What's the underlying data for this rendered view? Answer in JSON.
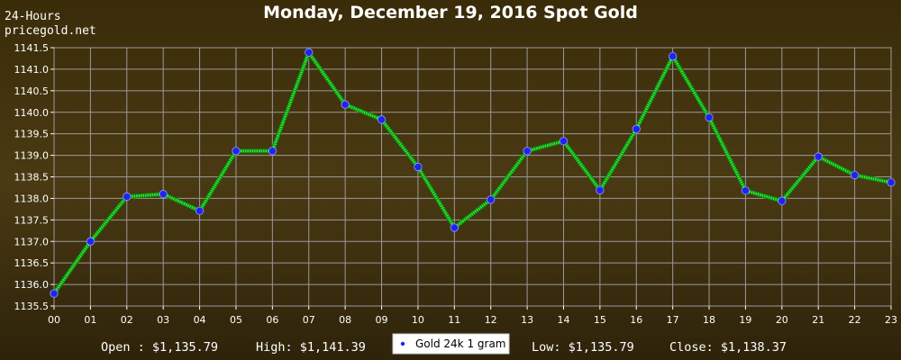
{
  "corner": {
    "line1": "24-Hours",
    "line2": "pricegold.net"
  },
  "chart_data": {
    "type": "line",
    "title": "Monday, December 19, 2016 Spot Gold",
    "categories": [
      "00",
      "01",
      "02",
      "03",
      "04",
      "05",
      "06",
      "07",
      "08",
      "09",
      "10",
      "11",
      "12",
      "13",
      "14",
      "15",
      "16",
      "17",
      "18",
      "19",
      "20",
      "21",
      "22",
      "23"
    ],
    "series": [
      {
        "name": "Gold 24k 1 gram",
        "values": [
          1135.79,
          1137.0,
          1138.04,
          1138.1,
          1137.71,
          1139.1,
          1139.1,
          1141.39,
          1140.18,
          1139.83,
          1138.73,
          1137.32,
          1137.97,
          1139.1,
          1139.33,
          1138.19,
          1139.61,
          1141.3,
          1139.88,
          1138.18,
          1137.94,
          1138.97,
          1138.54,
          1138.37
        ]
      }
    ],
    "ylim": [
      1135.5,
      1141.5
    ],
    "yticks": [
      "1135.5",
      "1136.0",
      "1136.5",
      "1137.0",
      "1137.5",
      "1138.0",
      "1138.5",
      "1139.0",
      "1139.5",
      "1140.0",
      "1140.5",
      "1141.0",
      "1141.5"
    ],
    "grid": true,
    "legend_position": "bottom-center"
  },
  "stats": {
    "open": "Open : $1,135.79",
    "high": "High: $1,141.39",
    "low": "Low: $1,135.79",
    "close": "Close: $1,138.37"
  },
  "colors": {
    "line": "#33ee33",
    "marker_fill": "#2222ee",
    "grid": "#9a9a9a",
    "axis": "#ffffff"
  }
}
